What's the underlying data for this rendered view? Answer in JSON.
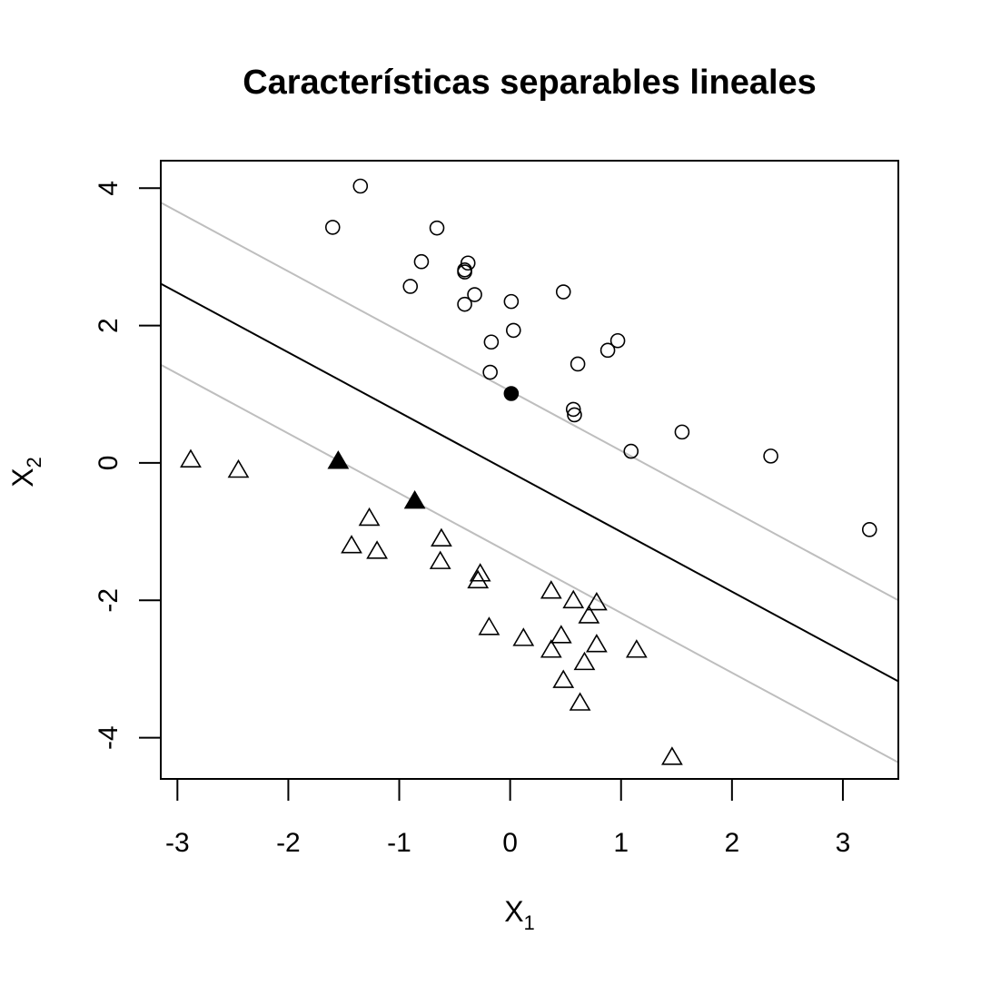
{
  "chart_data": {
    "type": "scatter",
    "title": "Características separables lineales",
    "xlabel": {
      "main": "X",
      "sub": "1"
    },
    "ylabel": {
      "main": "X",
      "sub": "2"
    },
    "xlim": [
      -3.15,
      3.5
    ],
    "ylim": [
      -4.6,
      4.4
    ],
    "x_ticks": [
      {
        "value": -3,
        "label": "-3"
      },
      {
        "value": -2,
        "label": "-2"
      },
      {
        "value": -1,
        "label": "-1"
      },
      {
        "value": 0,
        "label": "0"
      },
      {
        "value": 1,
        "label": "1"
      },
      {
        "value": 2,
        "label": "2"
      },
      {
        "value": 3,
        "label": "3"
      }
    ],
    "y_ticks": [
      {
        "value": -4,
        "label": "-4"
      },
      {
        "value": -2,
        "label": "-2"
      },
      {
        "value": 0,
        "label": "0"
      },
      {
        "value": 2,
        "label": "2"
      },
      {
        "value": 4,
        "label": "4"
      }
    ],
    "grid": false,
    "lines": [
      {
        "role": "decision-boundary",
        "color": "#000000",
        "points": [
          [
            -3.15,
            2.61
          ],
          [
            3.5,
            -3.18
          ]
        ]
      },
      {
        "role": "margin-upper",
        "color": "#bebebe",
        "points": [
          [
            -3.15,
            3.79
          ],
          [
            3.5,
            -2.0
          ]
        ]
      },
      {
        "role": "margin-lower",
        "color": "#bebebe",
        "points": [
          [
            -3.15,
            1.43
          ],
          [
            3.5,
            -4.36
          ]
        ]
      }
    ],
    "series": [
      {
        "marker": "circle",
        "points": [
          [
            -1.35,
            4.03
          ],
          [
            -1.6,
            3.43
          ],
          [
            -0.66,
            3.42
          ],
          [
            -0.8,
            2.93
          ],
          [
            -0.38,
            2.91
          ],
          [
            -0.41,
            2.81
          ],
          [
            -0.41,
            2.78
          ],
          [
            -0.9,
            2.57
          ],
          [
            -0.32,
            2.45
          ],
          [
            0.48,
            2.49
          ],
          [
            -0.41,
            2.31
          ],
          [
            0.01,
            2.35
          ],
          [
            0.03,
            1.93
          ],
          [
            -0.17,
            1.76
          ],
          [
            0.97,
            1.78
          ],
          [
            0.88,
            1.64
          ],
          [
            0.61,
            1.44
          ],
          [
            -0.18,
            1.32
          ],
          [
            0.57,
            0.78
          ],
          [
            0.58,
            0.7
          ],
          [
            1.55,
            0.45
          ],
          [
            1.09,
            0.17
          ],
          [
            2.35,
            0.1
          ],
          [
            3.24,
            -0.97
          ]
        ],
        "support_vectors": [
          [
            0.01,
            1.01
          ]
        ]
      },
      {
        "marker": "triangle",
        "points": [
          [
            -2.88,
            0.05
          ],
          [
            -2.45,
            -0.1
          ],
          [
            -1.27,
            -0.8
          ],
          [
            -0.62,
            -1.1
          ],
          [
            -1.43,
            -1.2
          ],
          [
            -1.2,
            -1.28
          ],
          [
            -0.63,
            -1.43
          ],
          [
            -0.27,
            -1.61
          ],
          [
            -0.29,
            -1.71
          ],
          [
            0.37,
            -1.86
          ],
          [
            0.57,
            -2.0
          ],
          [
            0.78,
            -2.03
          ],
          [
            0.71,
            -2.22
          ],
          [
            -0.19,
            -2.39
          ],
          [
            0.12,
            -2.55
          ],
          [
            0.46,
            -2.51
          ],
          [
            0.78,
            -2.64
          ],
          [
            0.37,
            -2.72
          ],
          [
            1.14,
            -2.72
          ],
          [
            0.67,
            -2.9
          ],
          [
            0.48,
            -3.16
          ],
          [
            0.63,
            -3.49
          ],
          [
            1.46,
            -4.28
          ]
        ],
        "support_vectors": [
          [
            -1.55,
            0.03
          ],
          [
            -0.86,
            -0.55
          ]
        ]
      }
    ]
  }
}
